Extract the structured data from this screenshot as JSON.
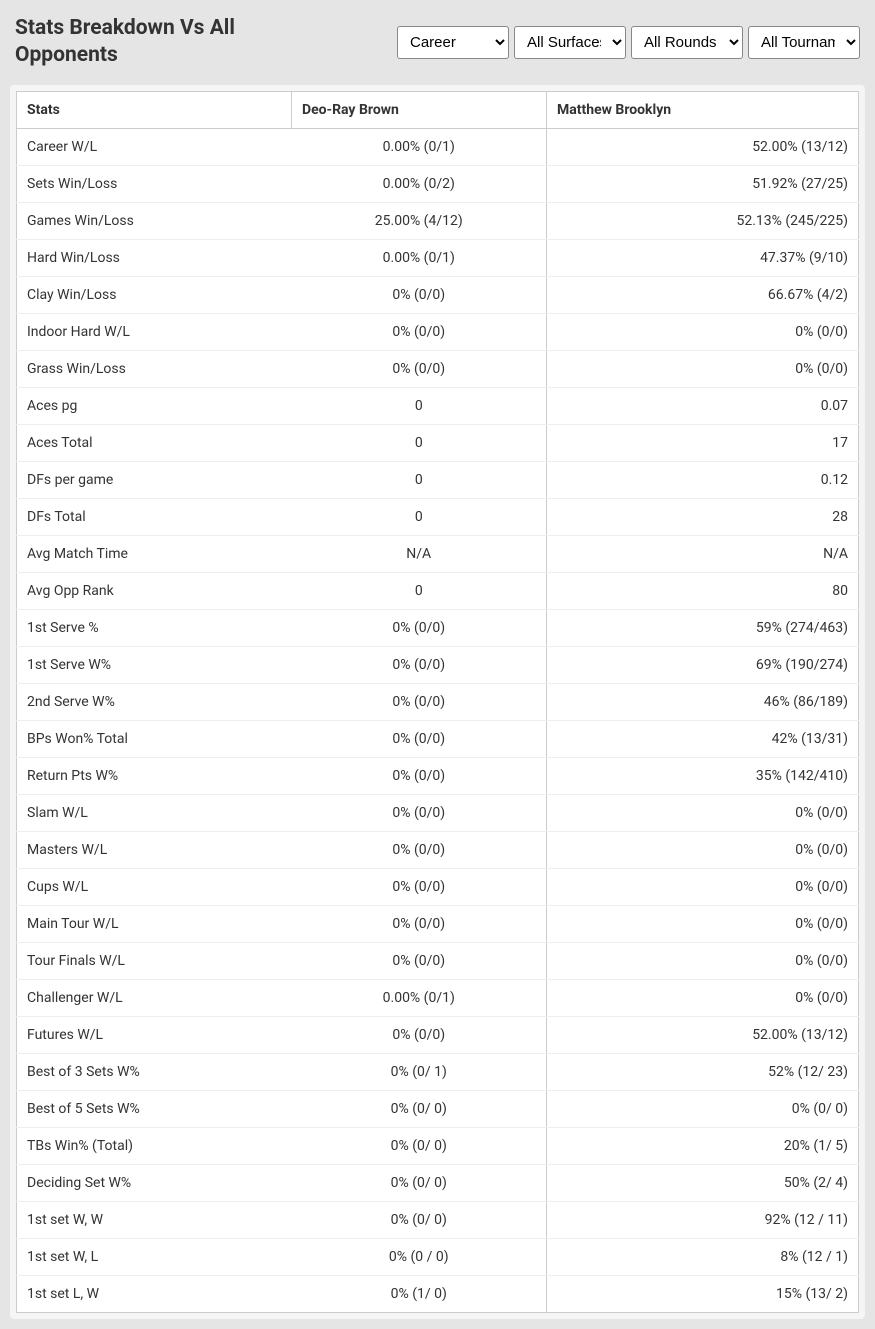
{
  "header": {
    "title": "Stats Breakdown Vs All Opponents"
  },
  "filters": {
    "period": {
      "selected": "Career"
    },
    "surface": {
      "selected": "All Surfaces"
    },
    "round": {
      "selected": "All Rounds"
    },
    "tournament": {
      "selected": "All Tournaments"
    }
  },
  "table": {
    "columns": [
      "Stats",
      "Deo-Ray Brown",
      "Matthew Brooklyn"
    ],
    "rows": [
      [
        "Career W/L",
        "0.00% (0/1)",
        "52.00% (13/12)"
      ],
      [
        "Sets Win/Loss",
        "0.00% (0/2)",
        "51.92% (27/25)"
      ],
      [
        "Games Win/Loss",
        "25.00% (4/12)",
        "52.13% (245/225)"
      ],
      [
        "Hard Win/Loss",
        "0.00% (0/1)",
        "47.37% (9/10)"
      ],
      [
        "Clay Win/Loss",
        "0% (0/0)",
        "66.67% (4/2)"
      ],
      [
        "Indoor Hard W/L",
        "0% (0/0)",
        "0% (0/0)"
      ],
      [
        "Grass Win/Loss",
        "0% (0/0)",
        "0% (0/0)"
      ],
      [
        "Aces pg",
        "0",
        "0.07"
      ],
      [
        "Aces Total",
        "0",
        "17"
      ],
      [
        "DFs per game",
        "0",
        "0.12"
      ],
      [
        "DFs Total",
        "0",
        "28"
      ],
      [
        "Avg Match Time",
        "N/A",
        "N/A"
      ],
      [
        "Avg Opp Rank",
        "0",
        "80"
      ],
      [
        "1st Serve %",
        "0% (0/0)",
        "59% (274/463)"
      ],
      [
        "1st Serve W%",
        "0% (0/0)",
        "69% (190/274)"
      ],
      [
        "2nd Serve W%",
        "0% (0/0)",
        "46% (86/189)"
      ],
      [
        "BPs Won% Total",
        "0% (0/0)",
        "42% (13/31)"
      ],
      [
        "Return Pts W%",
        "0% (0/0)",
        "35% (142/410)"
      ],
      [
        "Slam W/L",
        "0% (0/0)",
        "0% (0/0)"
      ],
      [
        "Masters W/L",
        "0% (0/0)",
        "0% (0/0)"
      ],
      [
        "Cups W/L",
        "0% (0/0)",
        "0% (0/0)"
      ],
      [
        "Main Tour W/L",
        "0% (0/0)",
        "0% (0/0)"
      ],
      [
        "Tour Finals W/L",
        "0% (0/0)",
        "0% (0/0)"
      ],
      [
        "Challenger W/L",
        "0.00% (0/1)",
        "0% (0/0)"
      ],
      [
        "Futures W/L",
        "0% (0/0)",
        "52.00% (13/12)"
      ],
      [
        "Best of 3 Sets W%",
        "0% (0/ 1)",
        "52% (12/ 23)"
      ],
      [
        "Best of 5 Sets W%",
        "0% (0/ 0)",
        "0% (0/ 0)"
      ],
      [
        "TBs Win% (Total)",
        "0% (0/ 0)",
        "20% (1/ 5)"
      ],
      [
        "Deciding Set W%",
        "0% (0/ 0)",
        "50% (2/ 4)"
      ],
      [
        "1st set W, W",
        "0% (0/ 0)",
        "92% (12 / 11)"
      ],
      [
        "1st set W, L",
        "0% (0 / 0)",
        "8% (12 / 1)"
      ],
      [
        "1st set L, W",
        "0% (1/ 0)",
        "15% (13/ 2)"
      ]
    ]
  }
}
